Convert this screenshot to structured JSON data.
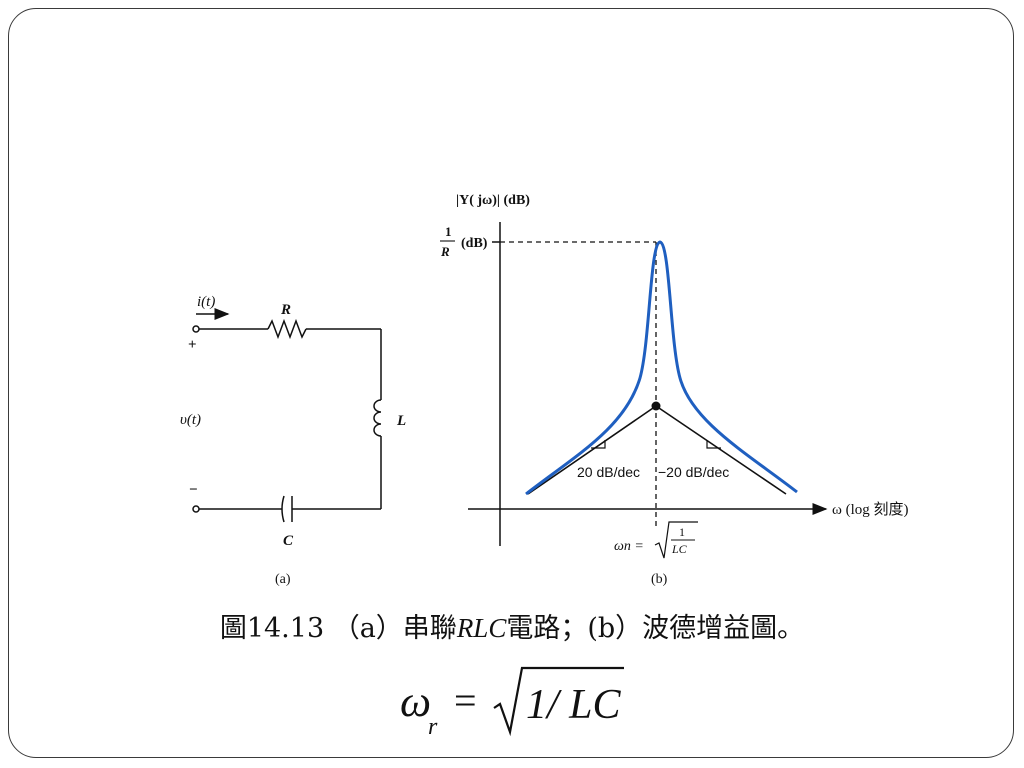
{
  "circuit": {
    "current_label": "i(t)",
    "plus_label": "+",
    "minus_label": "−",
    "voltage_label": "υ(t)",
    "resistor_label": "R",
    "inductor_label": "L",
    "capacitor_label": "C",
    "panel_label": "(a)"
  },
  "plot": {
    "y_axis_label": "|Y( jω)| (dB)",
    "peak_label_num": "1",
    "peak_label_den": "R",
    "peak_label_unit": "(dB)",
    "x_axis_label": "ω (log 刻度)",
    "slope_left": "20 dB/dec",
    "slope_right": "−20 dB/dec",
    "omega_n_prefix": "ωn =",
    "omega_n_num": "1",
    "omega_n_den": "LC",
    "panel_label": "(b)",
    "curve_color": "#1f5fc0"
  },
  "caption": {
    "prefix": "圖14.13 （a）串聯",
    "italic": "RLC",
    "suffix": "電路；(b）波德增益圖。"
  },
  "formula": {
    "omega": "ω",
    "sub": "r",
    "equals": "=",
    "radicand": "1/ LC"
  }
}
